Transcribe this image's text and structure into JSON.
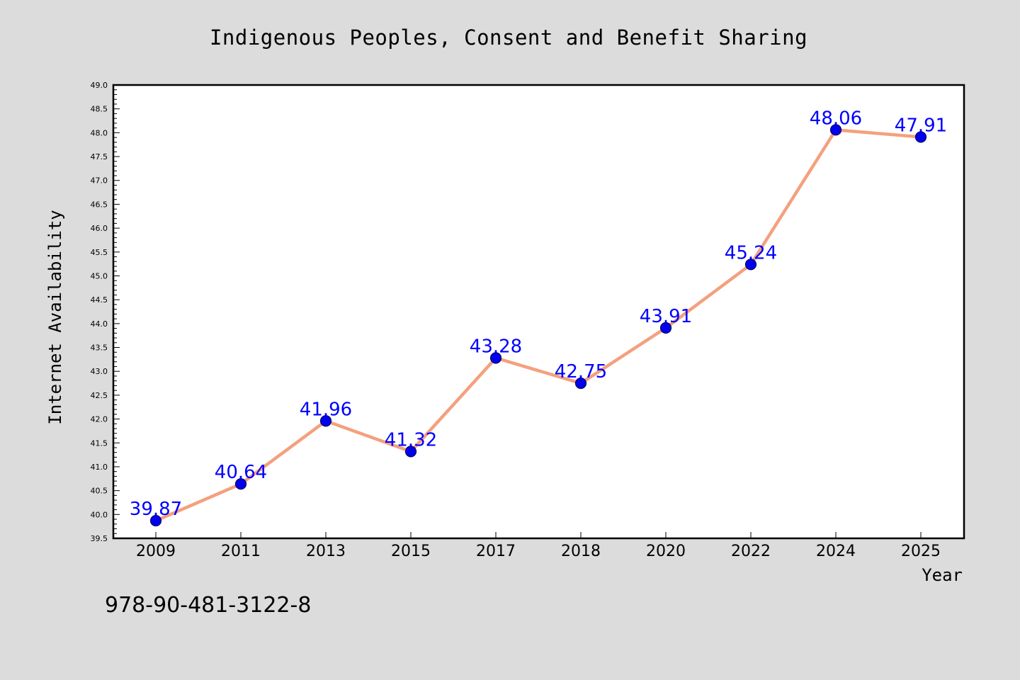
{
  "chart_data": {
    "type": "line",
    "title": "Indigenous Peoples, Consent and Benefit Sharing",
    "xlabel": "Year",
    "ylabel": "Internet Availability",
    "categories": [
      "2009",
      "2011",
      "2013",
      "2015",
      "2017",
      "2018",
      "2020",
      "2022",
      "2024",
      "2025"
    ],
    "values": [
      39.87,
      40.64,
      41.96,
      41.32,
      43.28,
      42.75,
      43.91,
      45.24,
      48.06,
      47.91
    ],
    "value_labels": [
      "39.87",
      "40.64",
      "41.96",
      "41.32",
      "43.28",
      "42.75",
      "43.91",
      "45.24",
      "48.06",
      "47.91"
    ],
    "ylim": [
      39.5,
      49.0
    ],
    "y_ticks": [
      "39.5",
      "40.0",
      "40.5",
      "41.0",
      "41.5",
      "42.0",
      "42.5",
      "43.0",
      "43.5",
      "44.0",
      "44.5",
      "45.0",
      "45.5",
      "46.0",
      "46.5",
      "47.0",
      "47.5",
      "48.0",
      "48.5",
      "49.0"
    ],
    "y_minor_step": 0.1,
    "grid": false,
    "colors": {
      "line": "#f4a07e",
      "marker": "#0000ee",
      "marker_edge": "#000066",
      "value_label": "#0000ff",
      "background": "#dcdcdc",
      "plot_background": "#ffffff"
    }
  },
  "footer": {
    "isbn": "978-90-481-3122-8"
  }
}
